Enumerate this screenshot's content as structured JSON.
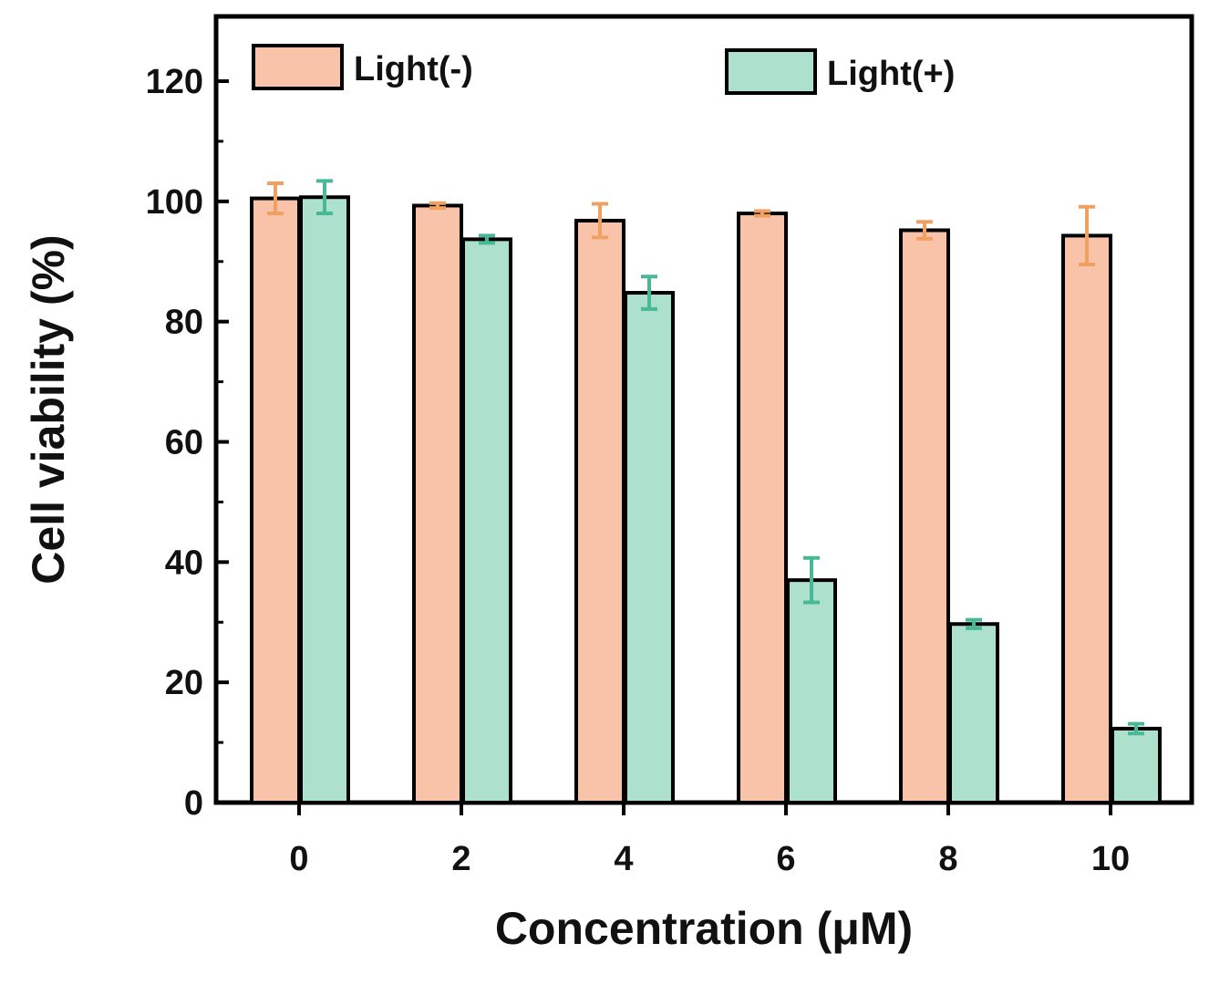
{
  "chart_data": {
    "type": "bar",
    "title": "",
    "xlabel": "Concentration (μM)",
    "ylabel": "Cell viability (%)",
    "categories": [
      "0",
      "2",
      "4",
      "6",
      "8",
      "10"
    ],
    "ylim": [
      0,
      130
    ],
    "yticks": [
      "0",
      "20",
      "40",
      "60",
      "80",
      "100",
      "120"
    ],
    "grid": false,
    "legend_position": "top",
    "series": [
      {
        "name": "Light(-)",
        "values": [
          100.5,
          99.3,
          96.8,
          98.0,
          95.2,
          94.3
        ],
        "errors": [
          2.5,
          0.4,
          2.8,
          0.4,
          1.4,
          4.8
        ],
        "color": "#f9c3aa",
        "error_color": "#f0a060"
      },
      {
        "name": "Light(+)",
        "values": [
          100.7,
          93.7,
          84.8,
          37.0,
          29.7,
          12.3
        ],
        "errors": [
          2.7,
          0.6,
          2.7,
          3.7,
          0.7,
          0.8
        ],
        "color": "#aee1cd",
        "error_color": "#48b896"
      }
    ]
  }
}
